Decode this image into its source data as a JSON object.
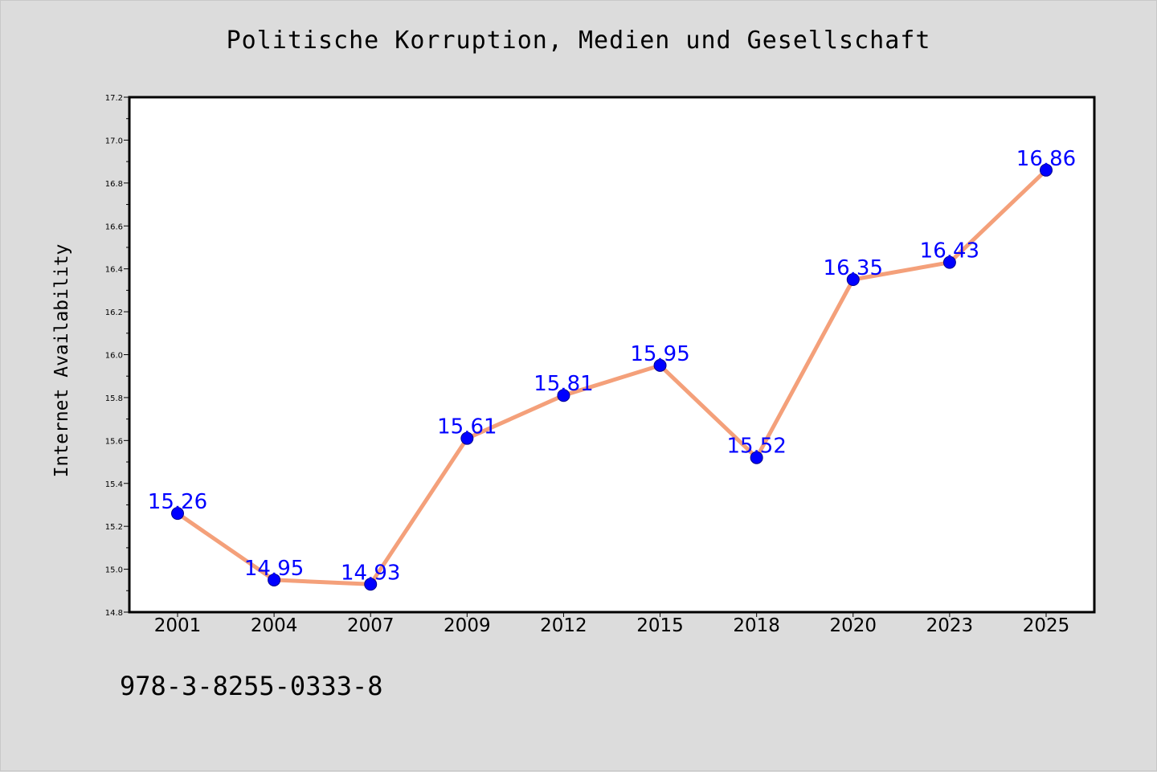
{
  "title": "Politische Korruption, Medien und Gesellschaft",
  "footer_code": "978-3-8255-0333-8",
  "colors": {
    "line": "#f4a07a",
    "marker": "#0000ff",
    "label": "#0000ff",
    "background": "#dcdcdc",
    "plot_background": "#ffffff"
  },
  "chart_data": {
    "type": "line",
    "title": "Politische Korruption, Medien und Gesellschaft",
    "xlabel": "",
    "ylabel": "Internet Availability",
    "categories": [
      "2001",
      "2004",
      "2007",
      "2009",
      "2012",
      "2015",
      "2018",
      "2020",
      "2023",
      "2025"
    ],
    "values": [
      15.26,
      14.95,
      14.93,
      15.61,
      15.81,
      15.95,
      15.52,
      16.35,
      16.43,
      16.86
    ],
    "data_labels": [
      "15.26",
      "14.95",
      "14.93",
      "15.61",
      "15.81",
      "15.95",
      "15.52",
      "16.35",
      "16.43",
      "16.86"
    ],
    "ylim": [
      14.8,
      17.2
    ],
    "yticks": [
      "14.8",
      "15.0",
      "15.2",
      "15.4",
      "15.6",
      "15.8",
      "16.0",
      "16.2",
      "16.4",
      "16.6",
      "16.8",
      "17.0",
      "17.2"
    ],
    "ytick_values": [
      14.8,
      15.0,
      15.2,
      15.4,
      15.6,
      15.8,
      16.0,
      16.2,
      16.4,
      16.6,
      16.8,
      17.0,
      17.2
    ],
    "grid": false,
    "legend": "none"
  }
}
